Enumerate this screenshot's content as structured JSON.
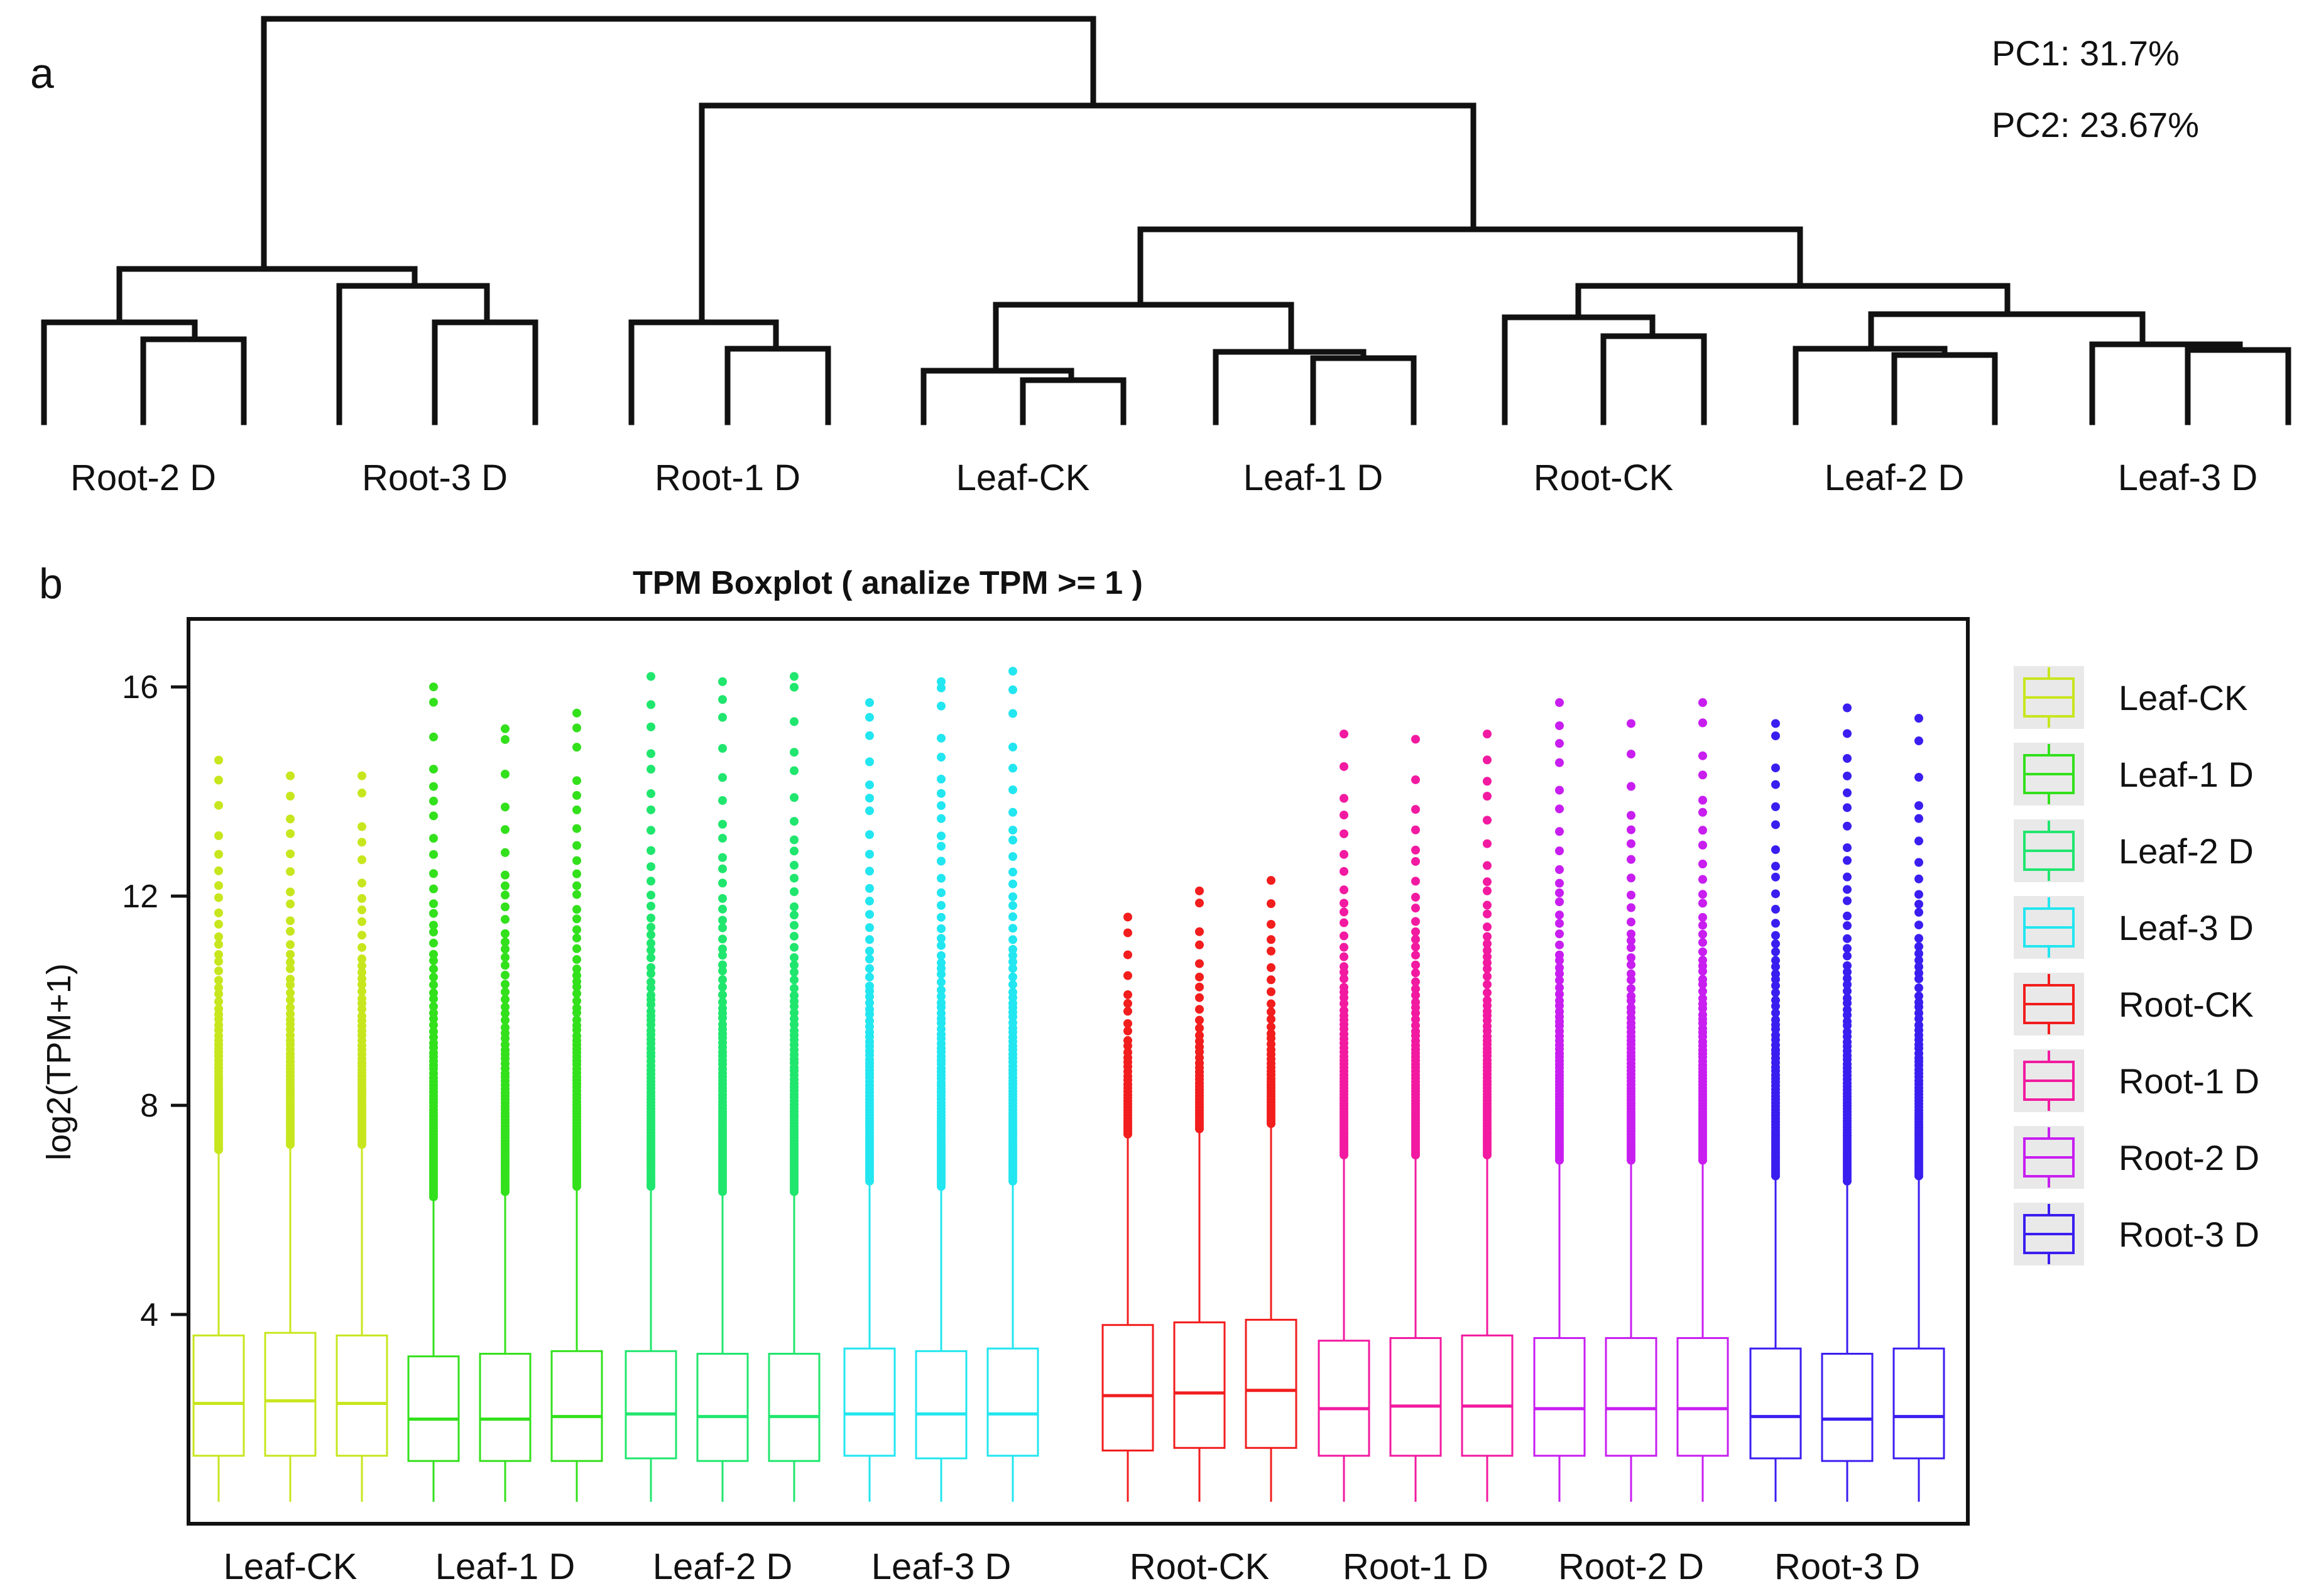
{
  "panel_a": {
    "label": "a",
    "pc1": "PC1: 31.7%",
    "pc2": "PC2: 23.67%",
    "group_labels": [
      "Root-2 D",
      "Root-3 D",
      "Root-1 D",
      "Leaf-CK",
      "Leaf-1 D",
      "Root-CK",
      "Leaf-2 D",
      "Leaf-3 D"
    ]
  },
  "panel_b": {
    "label": "b"
  },
  "chart_data": {
    "type": "box",
    "title": "TPM Boxplot ( analize TPM >= 1 )",
    "xlabel": "",
    "ylabel": "log2(TPM+1)",
    "ylim": [
      0,
      17.3
    ],
    "yticks": [
      "4",
      "8",
      "12",
      "16"
    ],
    "groups": [
      "Leaf-CK",
      "Leaf-1 D",
      "Leaf-2 D",
      "Leaf-3 D",
      "Root-CK",
      "Root-1 D",
      "Root-2 D",
      "Root-3 D"
    ],
    "legend": [
      {
        "name": "Leaf-CK",
        "color": "#c8e61e"
      },
      {
        "name": "Leaf-1 D",
        "color": "#33e01c"
      },
      {
        "name": "Leaf-2 D",
        "color": "#20e66e"
      },
      {
        "name": "Leaf-3 D",
        "color": "#22e6f0"
      },
      {
        "name": "Root-CK",
        "color": "#f21d1d"
      },
      {
        "name": "Root-1 D",
        "color": "#f21aa0"
      },
      {
        "name": "Root-2 D",
        "color": "#c81ef0"
      },
      {
        "name": "Root-3 D",
        "color": "#3a1ef0"
      }
    ],
    "boxes": [
      {
        "group": "Leaf-CK",
        "q1": 1.3,
        "median": 2.3,
        "q3": 3.6,
        "whisker_high": 7.1,
        "max": 14.6
      },
      {
        "group": "Leaf-CK",
        "q1": 1.3,
        "median": 2.35,
        "q3": 3.65,
        "whisker_high": 7.2,
        "max": 14.3
      },
      {
        "group": "Leaf-CK",
        "q1": 1.3,
        "median": 2.3,
        "q3": 3.6,
        "whisker_high": 7.2,
        "max": 14.3
      },
      {
        "group": "Leaf-1 D",
        "q1": 1.2,
        "median": 2.0,
        "q3": 3.2,
        "whisker_high": 6.2,
        "max": 16.0
      },
      {
        "group": "Leaf-1 D",
        "q1": 1.2,
        "median": 2.0,
        "q3": 3.25,
        "whisker_high": 6.3,
        "max": 15.2
      },
      {
        "group": "Leaf-1 D",
        "q1": 1.2,
        "median": 2.05,
        "q3": 3.3,
        "whisker_high": 6.4,
        "max": 15.5
      },
      {
        "group": "Leaf-2 D",
        "q1": 1.25,
        "median": 2.1,
        "q3": 3.3,
        "whisker_high": 6.4,
        "max": 16.2
      },
      {
        "group": "Leaf-2 D",
        "q1": 1.2,
        "median": 2.05,
        "q3": 3.25,
        "whisker_high": 6.3,
        "max": 16.1
      },
      {
        "group": "Leaf-2 D",
        "q1": 1.2,
        "median": 2.05,
        "q3": 3.25,
        "whisker_high": 6.3,
        "max": 16.2
      },
      {
        "group": "Leaf-3 D",
        "q1": 1.3,
        "median": 2.1,
        "q3": 3.35,
        "whisker_high": 6.5,
        "max": 15.7
      },
      {
        "group": "Leaf-3 D",
        "q1": 1.25,
        "median": 2.1,
        "q3": 3.3,
        "whisker_high": 6.4,
        "max": 16.1
      },
      {
        "group": "Leaf-3 D",
        "q1": 1.3,
        "median": 2.1,
        "q3": 3.35,
        "whisker_high": 6.5,
        "max": 16.3
      },
      {
        "group": "Root-CK",
        "q1": 1.4,
        "median": 2.45,
        "q3": 3.8,
        "whisker_high": 7.4,
        "max": 11.6
      },
      {
        "group": "Root-CK",
        "q1": 1.45,
        "median": 2.5,
        "q3": 3.85,
        "whisker_high": 7.5,
        "max": 12.1
      },
      {
        "group": "Root-CK",
        "q1": 1.45,
        "median": 2.55,
        "q3": 3.9,
        "whisker_high": 7.6,
        "max": 12.3
      },
      {
        "group": "Root-1 D",
        "q1": 1.3,
        "median": 2.2,
        "q3": 3.5,
        "whisker_high": 7.0,
        "max": 15.1
      },
      {
        "group": "Root-1 D",
        "q1": 1.3,
        "median": 2.25,
        "q3": 3.55,
        "whisker_high": 7.0,
        "max": 15.0
      },
      {
        "group": "Root-1 D",
        "q1": 1.3,
        "median": 2.25,
        "q3": 3.6,
        "whisker_high": 7.0,
        "max": 15.1
      },
      {
        "group": "Root-2 D",
        "q1": 1.3,
        "median": 2.2,
        "q3": 3.55,
        "whisker_high": 6.9,
        "max": 15.7
      },
      {
        "group": "Root-2 D",
        "q1": 1.3,
        "median": 2.2,
        "q3": 3.55,
        "whisker_high": 6.9,
        "max": 15.3
      },
      {
        "group": "Root-2 D",
        "q1": 1.3,
        "median": 2.2,
        "q3": 3.55,
        "whisker_high": 6.9,
        "max": 15.7
      },
      {
        "group": "Root-3 D",
        "q1": 1.25,
        "median": 2.05,
        "q3": 3.35,
        "whisker_high": 6.6,
        "max": 15.3
      },
      {
        "group": "Root-3 D",
        "q1": 1.2,
        "median": 2.0,
        "q3": 3.25,
        "whisker_high": 6.5,
        "max": 15.6
      },
      {
        "group": "Root-3 D",
        "q1": 1.25,
        "median": 2.05,
        "q3": 3.35,
        "whisker_high": 6.6,
        "max": 15.4
      }
    ]
  }
}
